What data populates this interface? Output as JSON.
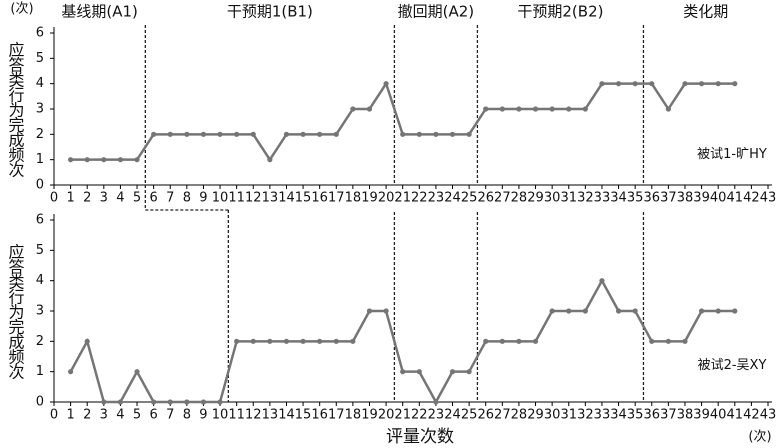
{
  "phase_labels": [
    "基线期(A1)",
    "干预期1(B1)",
    "撤回期(A2)",
    "干预期2(B2)",
    "类化期"
  ],
  "y_unit": "(次)",
  "x_unit": "(次)",
  "xlabel": "评量次数",
  "chart_data": [
    {
      "type": "line",
      "ylabel": "应答类行为完成频次",
      "subject": "被试1-旷HY",
      "color": "#757575",
      "x": [
        1,
        2,
        3,
        4,
        5,
        6,
        7,
        8,
        9,
        10,
        11,
        12,
        13,
        14,
        15,
        16,
        17,
        18,
        19,
        20,
        21,
        22,
        23,
        24,
        25,
        26,
        27,
        28,
        29,
        30,
        31,
        32,
        33,
        34,
        35,
        36,
        37,
        38,
        39,
        40,
        41
      ],
      "values": [
        1,
        1,
        1,
        1,
        1,
        2,
        2,
        2,
        2,
        2,
        2,
        2,
        1,
        2,
        2,
        2,
        2,
        3,
        3,
        4,
        2,
        2,
        2,
        2,
        2,
        3,
        3,
        3,
        3,
        3,
        3,
        3,
        4,
        4,
        4,
        4,
        3,
        4,
        4,
        4,
        4
      ],
      "phase_lines": [
        5.5,
        20.5,
        25.5,
        35.5
      ],
      "xlim": [
        0,
        43
      ],
      "xticks": [
        0,
        1,
        2,
        3,
        4,
        5,
        6,
        7,
        8,
        9,
        10,
        11,
        12,
        13,
        14,
        15,
        16,
        17,
        18,
        19,
        20,
        21,
        22,
        23,
        24,
        25,
        26,
        27,
        28,
        29,
        30,
        31,
        32,
        33,
        34,
        35,
        36,
        37,
        38,
        39,
        40,
        41,
        42,
        43
      ],
      "ylim": [
        0,
        6
      ],
      "yticks": [
        0,
        1,
        2,
        3,
        4,
        5,
        6
      ]
    },
    {
      "type": "line",
      "ylabel": "应答类行为完成频次",
      "subject": "被试2-吴XY",
      "color": "#757575",
      "x": [
        1,
        2,
        3,
        4,
        5,
        6,
        7,
        8,
        9,
        10,
        11,
        12,
        13,
        14,
        15,
        16,
        17,
        18,
        19,
        20,
        21,
        22,
        23,
        24,
        25,
        26,
        27,
        28,
        29,
        30,
        31,
        32,
        33,
        34,
        35,
        36,
        37,
        38,
        39,
        40,
        41
      ],
      "values": [
        1,
        2,
        0,
        0,
        1,
        0,
        0,
        0,
        0,
        0,
        2,
        2,
        2,
        2,
        2,
        2,
        2,
        2,
        3,
        3,
        1,
        1,
        0,
        1,
        1,
        2,
        2,
        2,
        2,
        3,
        3,
        3,
        4,
        3,
        3,
        2,
        2,
        2,
        3,
        3,
        3
      ],
      "phase_lines": [
        10.5,
        20.5,
        25.5,
        35.5
      ],
      "xlim": [
        0,
        43
      ],
      "xticks": [
        0,
        1,
        2,
        3,
        4,
        5,
        6,
        7,
        8,
        9,
        10,
        11,
        12,
        13,
        14,
        15,
        16,
        17,
        18,
        19,
        20,
        21,
        22,
        23,
        24,
        25,
        26,
        27,
        28,
        29,
        30,
        31,
        32,
        33,
        34,
        35,
        36,
        37,
        38,
        39,
        40,
        41,
        42,
        43
      ],
      "ylim": [
        0,
        6
      ],
      "yticks": [
        0,
        1,
        2,
        3,
        4,
        5,
        6
      ]
    }
  ]
}
